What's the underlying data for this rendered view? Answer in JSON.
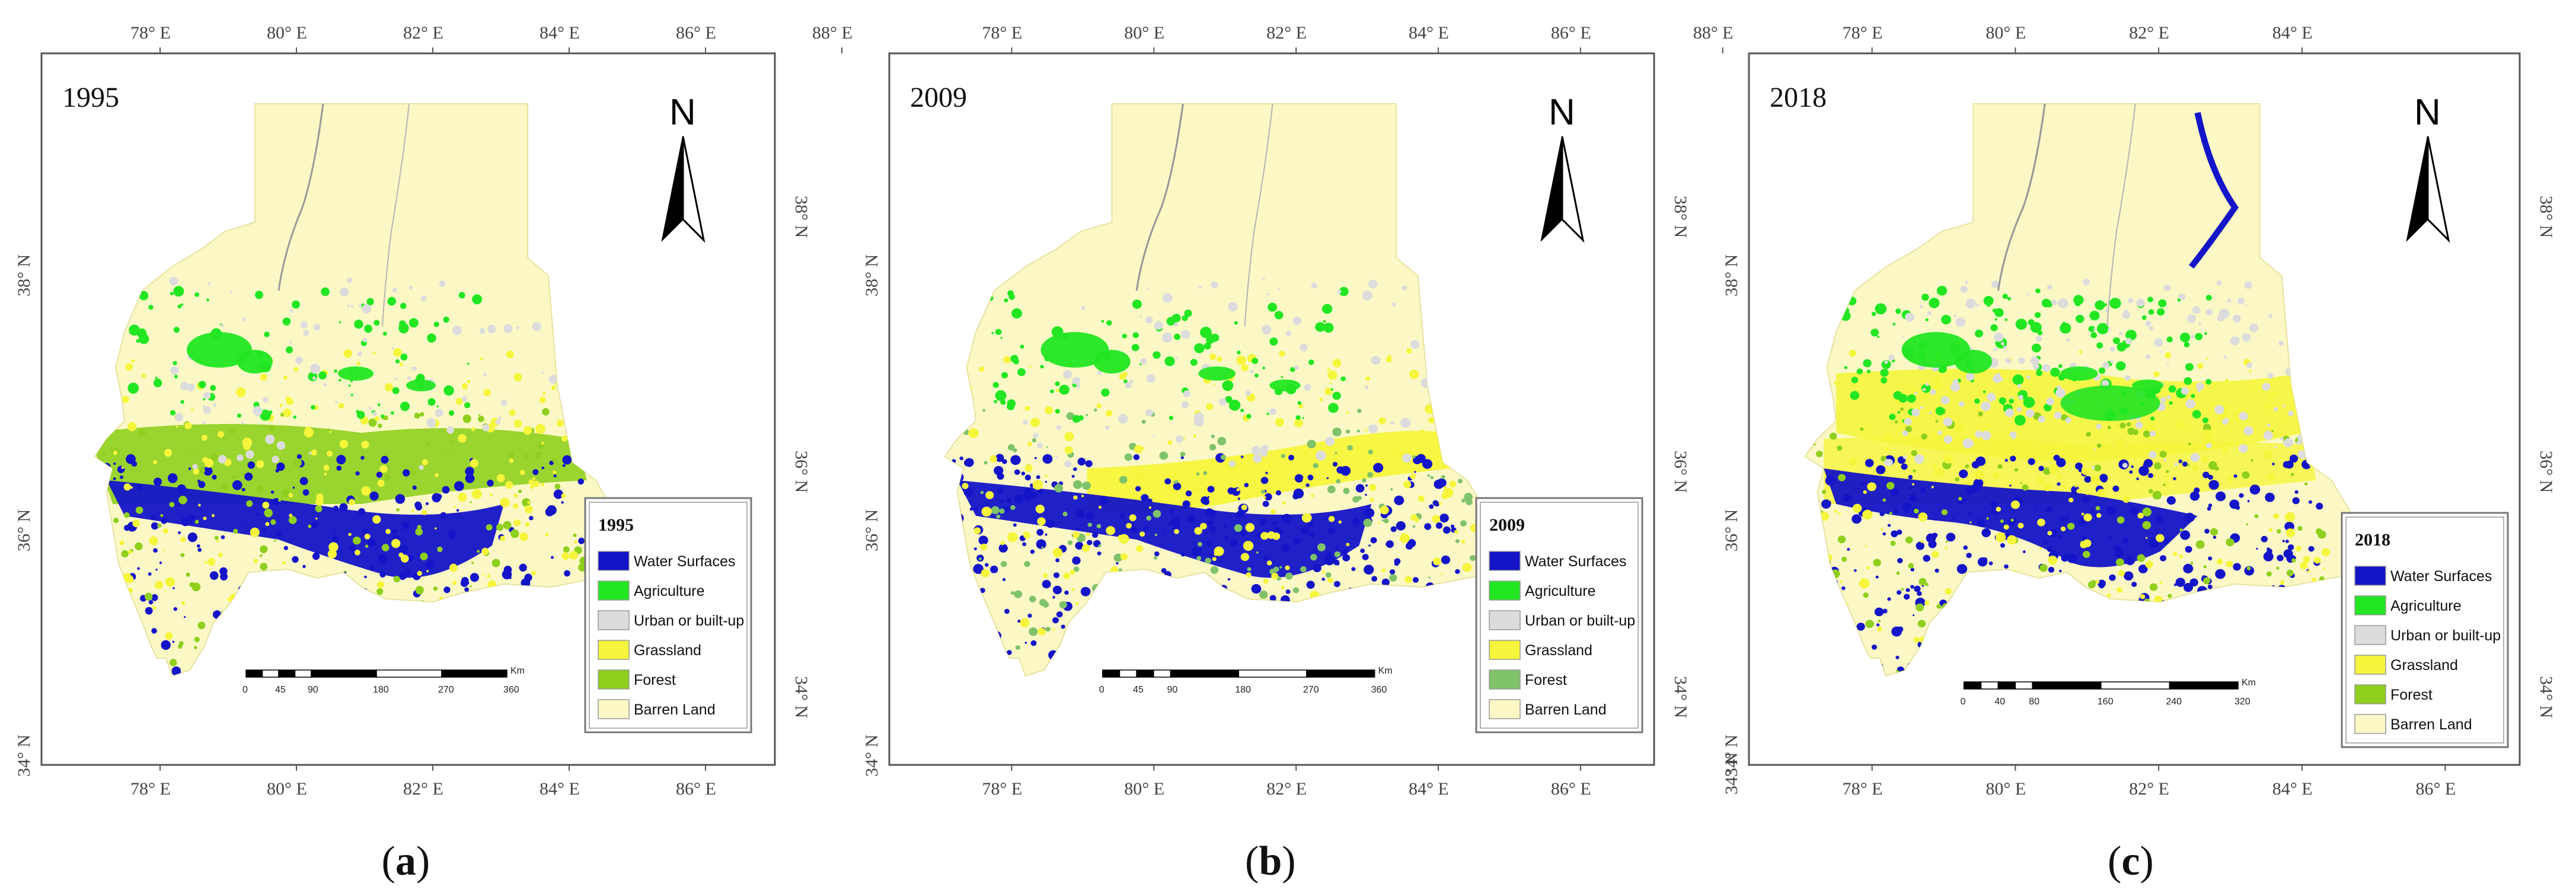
{
  "legend": {
    "colors": {
      "water": "#1414c8",
      "agriculture": "#22e622",
      "urban": "#dcdcdc",
      "grassland": "#f5f53c",
      "forest": "#8fcf1e",
      "barren": "#fbf8c6"
    }
  },
  "panels": [
    {
      "caption_letter": "a",
      "year": "1995",
      "legend_title": "1995",
      "legend_items": [
        "Water Surfaces",
        "Agriculture",
        "Urban or built-up",
        "Grassland",
        "Forest",
        "Barren Land"
      ],
      "forest_color": "#8fcf1e",
      "lon_labels": [
        "78° E",
        "80° E",
        "82° E",
        "84° E",
        "86° E"
      ],
      "lon_labels_top": [
        "78° E",
        "80° E",
        "82° E",
        "84° E",
        "86° E",
        "88° E"
      ],
      "lat_labels_left": [
        "38° N",
        "36° N",
        "34° N"
      ],
      "lat_labels_right": [
        "38° N",
        "36° N",
        "34° N"
      ],
      "scale_labels": [
        "0",
        "45",
        "90",
        "180",
        "270",
        "360"
      ],
      "scale_unit": "Km",
      "north_label": "N"
    },
    {
      "caption_letter": "b",
      "year": "2009",
      "legend_title": "2009",
      "legend_items": [
        "Water Surfaces",
        "Agriculture",
        "Urban or built-up",
        "Grassland",
        "Forest",
        "Barren Land"
      ],
      "forest_color": "#7fc26a",
      "lon_labels": [
        "78° E",
        "80° E",
        "82° E",
        "84° E",
        "86° E"
      ],
      "lon_labels_top": [
        "78° E",
        "80° E",
        "82° E",
        "84° E",
        "86° E",
        "88° E"
      ],
      "lat_labels_left": [
        "38° N",
        "36° N",
        "34° N"
      ],
      "lat_labels_right": [
        "38° N",
        "36° N",
        "34° N"
      ],
      "scale_labels": [
        "0",
        "45",
        "90",
        "180",
        "270",
        "360"
      ],
      "scale_unit": "Km",
      "north_label": "N"
    },
    {
      "caption_letter": "c",
      "year": "2018",
      "legend_title": "2018",
      "legend_items": [
        "Water Surfaces",
        "Agriculture",
        "Urban or built-up",
        "Grassland",
        "Forest",
        "Barren Land"
      ],
      "forest_color": "#8fcf1e",
      "lon_labels": [
        "78° E",
        "80° E",
        "82° E",
        "84° E",
        "86° E"
      ],
      "lon_labels_top": [
        "78° E",
        "80° E",
        "82° E",
        "84° E"
      ],
      "lat_labels_left": [
        "38° N",
        "36° N",
        "34° N",
        "34° N"
      ],
      "lat_labels_right": [
        "38° N",
        "36° N",
        "34° N"
      ],
      "scale_labels": [
        "0",
        "40",
        "80",
        "160",
        "240",
        "320"
      ],
      "scale_unit": "Km",
      "north_label": "N"
    }
  ]
}
